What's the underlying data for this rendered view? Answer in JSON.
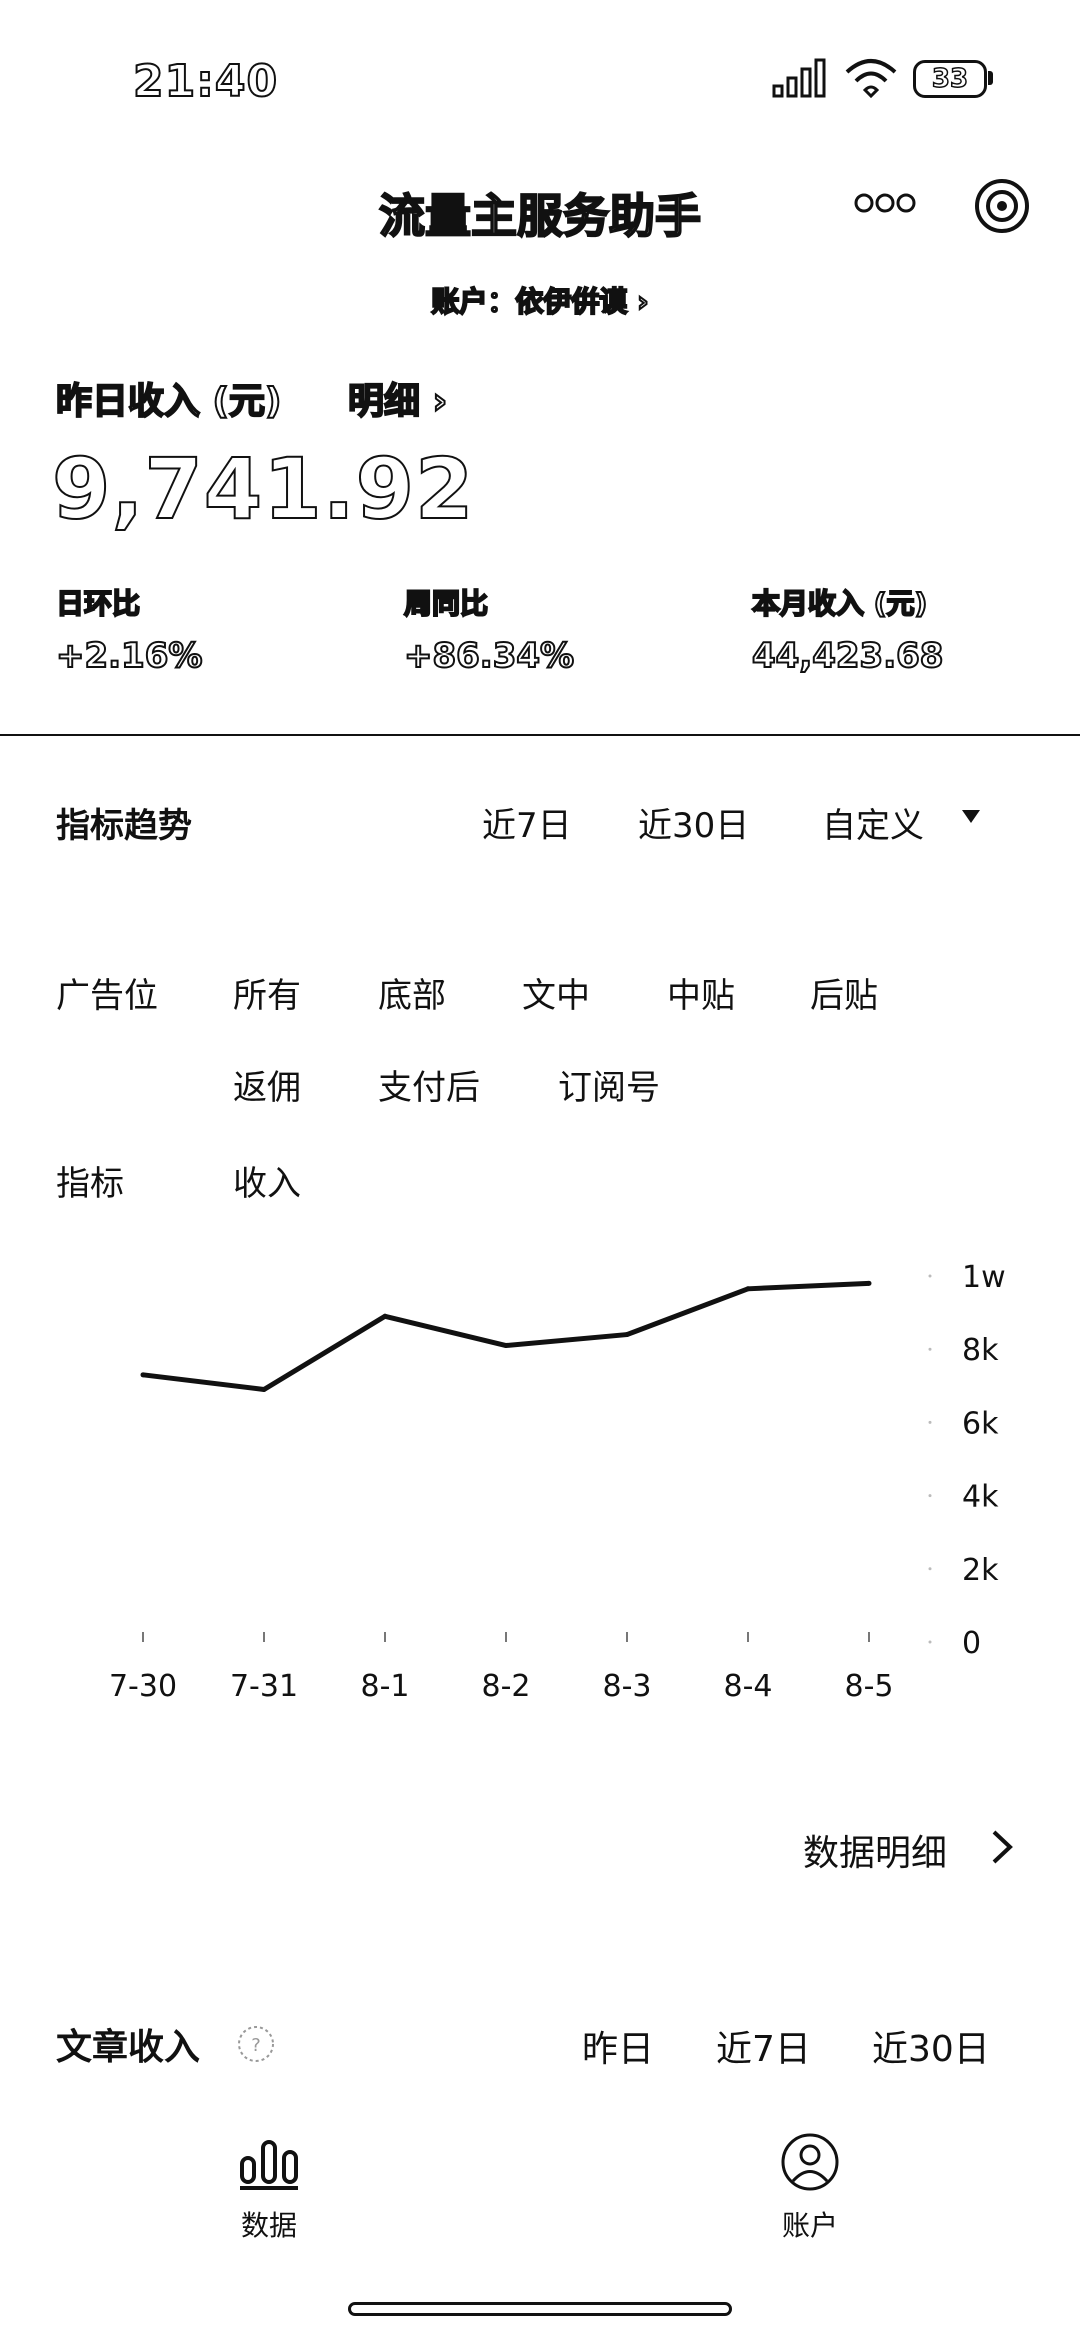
{
  "status_bar": {
    "time": "21:40",
    "battery": "33"
  },
  "header": {
    "title": "流量主服务助手",
    "account_line": "账户：依伊倂谟 ›"
  },
  "earnings": {
    "title": "昨日收入 (元)",
    "detail_link": "明细 ›",
    "value": "9,741.92",
    "stats": [
      {
        "label": "日环比",
        "value": "+2.16%"
      },
      {
        "label": "周同比",
        "value": "+86.34%"
      },
      {
        "label": "本月收入 (元)",
        "value": "44,423.68"
      }
    ]
  },
  "trend": {
    "title": "指标趋势",
    "ranges": [
      "近7日",
      "近30日",
      "自定义"
    ],
    "ad_label": "广告位",
    "ad_options_row1": [
      "所有",
      "底部",
      "文中",
      "中贴",
      "后贴"
    ],
    "ad_options_row2": [
      "返佣",
      "支付后",
      "订阅号"
    ],
    "metric_label": "指标",
    "metric_value": "收入"
  },
  "chart_data": {
    "type": "line",
    "categories": [
      "7-30",
      "7-31",
      "8-1",
      "8-2",
      "8-3",
      "8-4",
      "8-5"
    ],
    "values": [
      7300,
      6900,
      8900,
      8100,
      8400,
      9650,
      9800
    ],
    "y_ticks": [
      "0",
      "2k",
      "4k",
      "6k",
      "8k",
      "1w"
    ],
    "ylim": [
      0,
      10000
    ],
    "grid": false,
    "line_color": "#111111"
  },
  "data_detail": {
    "label": "数据明细"
  },
  "article": {
    "title": "文章收入",
    "tabs": [
      "昨日",
      "近7日",
      "近30日"
    ]
  },
  "tab_bar": {
    "items": [
      {
        "label": "数据",
        "icon": "bar-chart-icon"
      },
      {
        "label": "账户",
        "icon": "user-icon"
      }
    ]
  }
}
